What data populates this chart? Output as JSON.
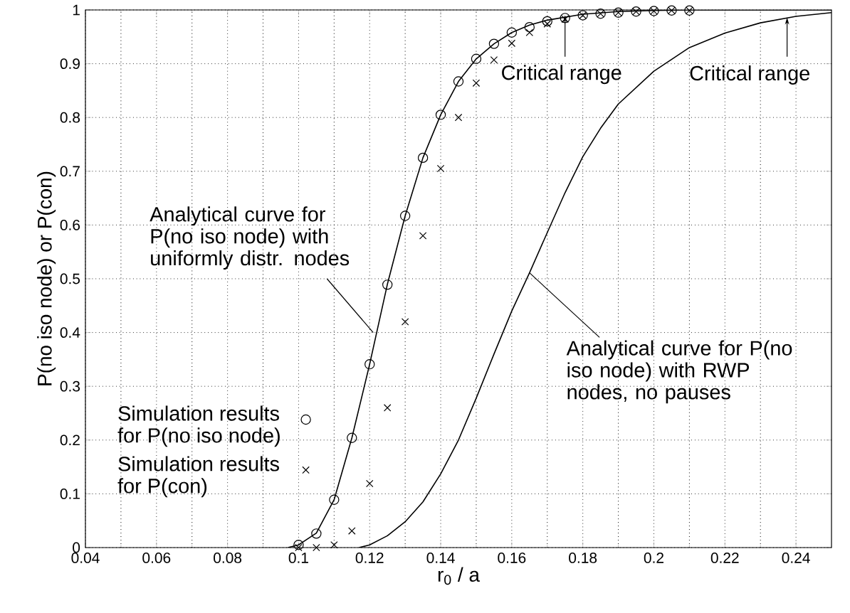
{
  "chart_data": {
    "type": "line",
    "xlabel": "r$_{0}$ / a",
    "ylabel": "P(no iso node) or P(con)",
    "xlim": [
      0.04,
      0.25
    ],
    "ylim": [
      0,
      1
    ],
    "xticks": [
      0.04,
      0.06,
      0.08,
      0.1,
      0.12,
      0.14,
      0.16,
      0.18,
      0.2,
      0.22,
      0.24
    ],
    "yticks": [
      0,
      0.1,
      0.2,
      0.3,
      0.4,
      0.5,
      0.6,
      0.7,
      0.8,
      0.9,
      1
    ],
    "grid": true,
    "legend": "left",
    "series": [
      {
        "type": "line",
        "color": "#000000",
        "marker": "none",
        "x": [
          0.097,
          0.1,
          0.105,
          0.11,
          0.115,
          0.12,
          0.125,
          0.13,
          0.135,
          0.14,
          0.145,
          0.15,
          0.155,
          0.16,
          0.165,
          0.17,
          0.18,
          0.19,
          0.2,
          0.21,
          0.25
        ],
        "values": [
          0,
          0.005,
          0.027,
          0.089,
          0.204,
          0.341,
          0.49,
          0.617,
          0.725,
          0.805,
          0.867,
          0.909,
          0.937,
          0.958,
          0.972,
          0.981,
          0.992,
          0.997,
          0.999,
          1,
          1
        ]
      },
      {
        "type": "line",
        "color": "#000000",
        "marker": "none",
        "x": [
          0.117,
          0.12,
          0.125,
          0.13,
          0.135,
          0.14,
          0.145,
          0.15,
          0.155,
          0.16,
          0.165,
          0.17,
          0.175,
          0.18,
          0.185,
          0.19,
          0.2,
          0.21,
          0.22,
          0.23,
          0.24,
          0.25
        ],
        "values": [
          0,
          0.005,
          0.022,
          0.048,
          0.085,
          0.137,
          0.2,
          0.278,
          0.36,
          0.44,
          0.511,
          0.586,
          0.66,
          0.727,
          0.78,
          0.825,
          0.886,
          0.93,
          0.957,
          0.976,
          0.988,
          0.995
        ]
      },
      {
        "type": "scatter",
        "name": "Simulation results for P(no iso node)",
        "color": "#000000",
        "marker": "circle",
        "x": [
          0.1,
          0.105,
          0.11,
          0.115,
          0.12,
          0.125,
          0.13,
          0.135,
          0.14,
          0.145,
          0.15,
          0.155,
          0.16,
          0.165,
          0.17,
          0.175,
          0.18,
          0.185,
          0.19,
          0.195,
          0.2,
          0.205,
          0.21
        ],
        "values": [
          0.005,
          0.026,
          0.089,
          0.204,
          0.341,
          0.489,
          0.617,
          0.725,
          0.805,
          0.867,
          0.909,
          0.937,
          0.958,
          0.968,
          0.979,
          0.985,
          0.99,
          0.993,
          0.995,
          0.997,
          0.998,
          0.999,
          0.999
        ]
      },
      {
        "type": "scatter",
        "name": "Simulation results for P(con)",
        "color": "#000000",
        "marker": "cross",
        "x": [
          0.1,
          0.105,
          0.11,
          0.115,
          0.12,
          0.125,
          0.13,
          0.135,
          0.14,
          0.145,
          0.15,
          0.155,
          0.16,
          0.165,
          0.17,
          0.175,
          0.18,
          0.185,
          0.19,
          0.195,
          0.2,
          0.205,
          0.21
        ],
        "values": [
          0,
          0,
          0.005,
          0.031,
          0.119,
          0.26,
          0.42,
          0.58,
          0.705,
          0.8,
          0.864,
          0.907,
          0.938,
          0.958,
          0.974,
          0.983,
          0.99,
          0.993,
          0.995,
          0.997,
          0.998,
          0.999,
          0.999
        ]
      }
    ],
    "annotations": [
      {
        "text": "Analytical curve for P(no iso node) with uniformly distr. nodes",
        "x": 0.121,
        "y": 0.4
      },
      {
        "text": "Analytical curve for P(no iso node) with RWP nodes, no pauses",
        "x": 0.165,
        "y": 0.511
      },
      {
        "text": "Critical range",
        "x": 0.175,
        "y": 0.99
      },
      {
        "text": "Critical range",
        "x": 0.2375,
        "y": 0.986
      }
    ]
  }
}
